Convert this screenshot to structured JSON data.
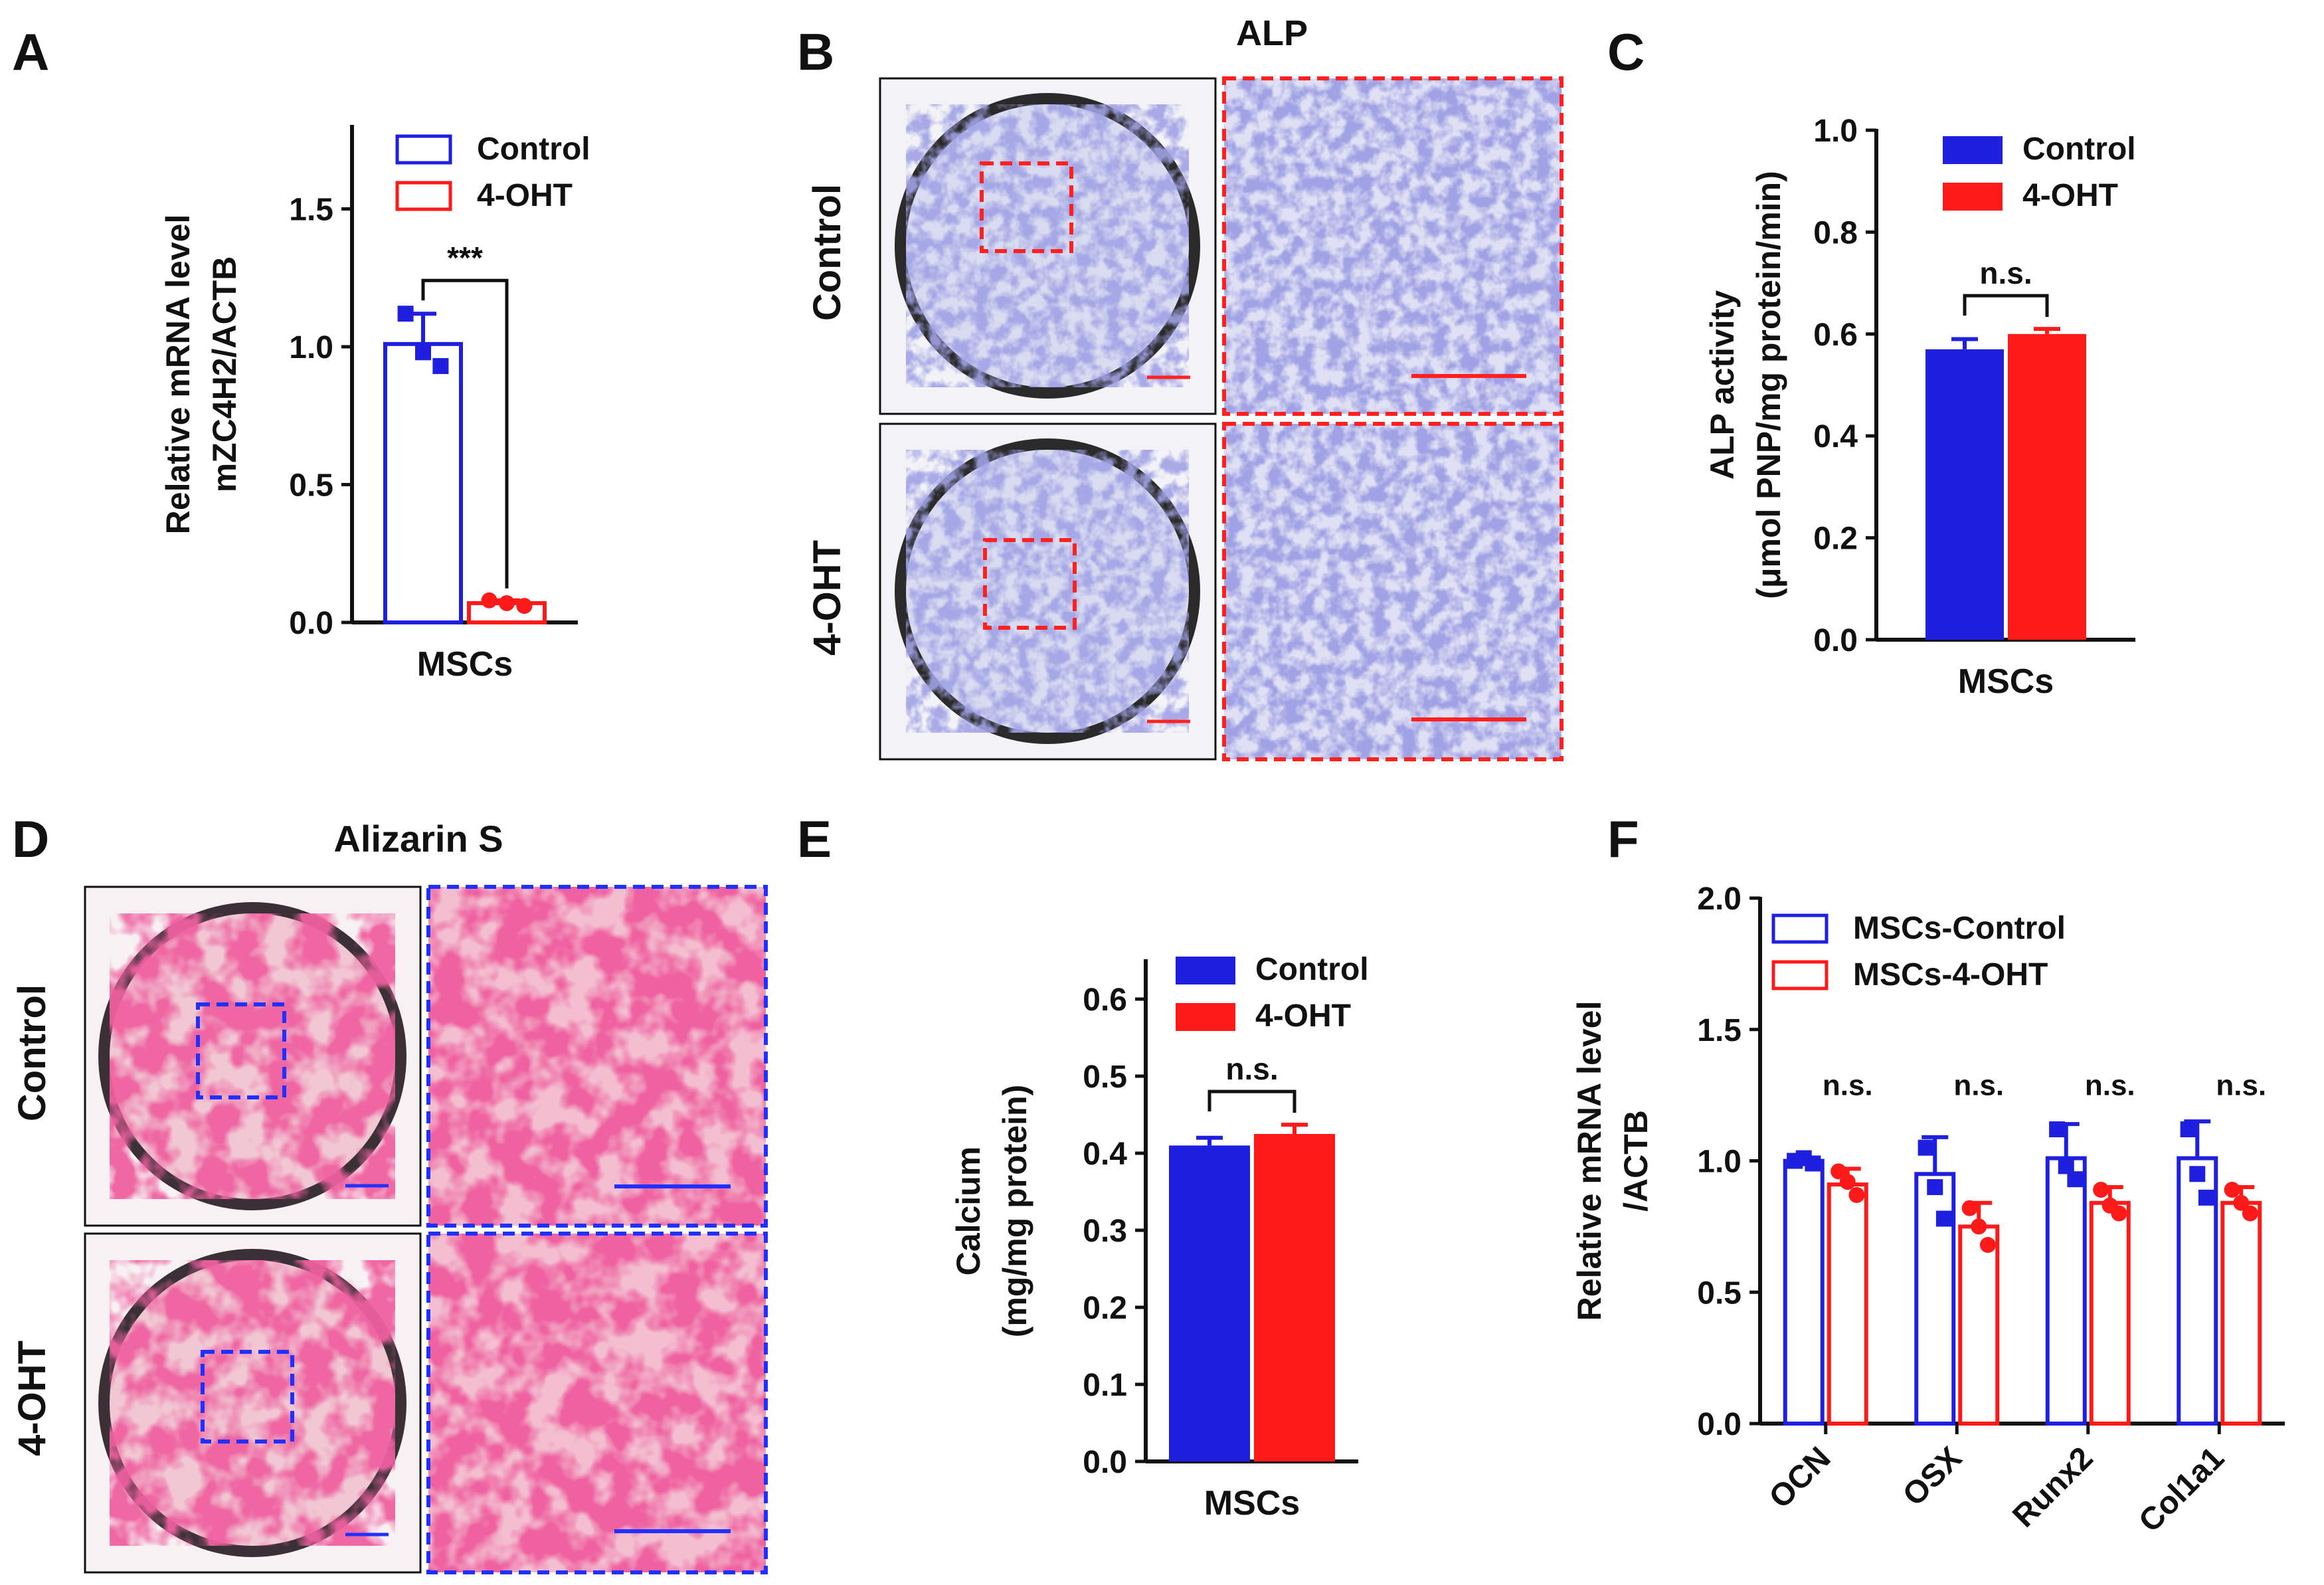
{
  "colors": {
    "control": "#1f1fe0",
    "treated": "#ff1a1a",
    "alp_stain": "#8a88cf",
    "alizarin_stain": "#e0295a",
    "axis": "#111111"
  },
  "panel_labels": [
    "A",
    "B",
    "C",
    "D",
    "E",
    "F"
  ],
  "micrographs": {
    "alp": {
      "title": "ALP",
      "rows": [
        "Control",
        "4-OHT"
      ],
      "box_color": "red"
    },
    "alizarin": {
      "title": "Alizarin S",
      "rows": [
        "Control",
        "4-OHT"
      ],
      "box_color": "blue"
    }
  },
  "chart_data": [
    {
      "panel": "A",
      "type": "bar",
      "style": "hollow",
      "categories": [
        "MSCs"
      ],
      "series": [
        {
          "name": "Control",
          "values": [
            1.01
          ],
          "errors": [
            0.11
          ],
          "points": [
            1.12,
            0.98,
            0.93
          ]
        },
        {
          "name": "4-OHT",
          "values": [
            0.07
          ],
          "errors": [
            0.01
          ],
          "points": [
            0.08,
            0.07,
            0.06
          ]
        }
      ],
      "ylabel_lines": [
        "Relative mRNA level",
        "mZC4H2/ACTB"
      ],
      "ylim": [
        0,
        1.8
      ],
      "yticks": [
        "0.0",
        "0.5",
        "1.0",
        "1.5"
      ],
      "significance": [
        "***"
      ],
      "legend_position": "top-right"
    },
    {
      "panel": "C",
      "type": "bar",
      "style": "filled",
      "categories": [
        "MSCs"
      ],
      "series": [
        {
          "name": "Control",
          "values": [
            0.57
          ],
          "errors": [
            0.02
          ]
        },
        {
          "name": "4-OHT",
          "values": [
            0.6
          ],
          "errors": [
            0.01
          ]
        }
      ],
      "ylabel_lines": [
        "ALP activity",
        "(μmol PNP/mg protein/min)"
      ],
      "ylim": [
        0,
        1.0
      ],
      "yticks": [
        "0.0",
        "0.2",
        "0.4",
        "0.6",
        "0.8",
        "1.0"
      ],
      "significance": [
        "n.s."
      ],
      "legend_position": "top-right"
    },
    {
      "panel": "E",
      "type": "bar",
      "style": "filled",
      "categories": [
        "MSCs"
      ],
      "series": [
        {
          "name": "Control",
          "values": [
            0.41
          ],
          "errors": [
            0.01
          ]
        },
        {
          "name": "4-OHT",
          "values": [
            0.425
          ],
          "errors": [
            0.012
          ]
        }
      ],
      "ylabel_lines": [
        "Calcium",
        "(mg/mg protein)"
      ],
      "ylim": [
        0,
        0.65
      ],
      "yticks": [
        "0.0",
        "0.1",
        "0.2",
        "0.3",
        "0.4",
        "0.5",
        "0.6"
      ],
      "significance": [
        "n.s."
      ],
      "legend_position": "top-right"
    },
    {
      "panel": "F",
      "type": "bar",
      "style": "hollow",
      "categories": [
        "OCN",
        "OSX",
        "Runx2",
        "Col1a1"
      ],
      "series": [
        {
          "name": "MSCs-Control",
          "values": [
            1.0,
            0.95,
            1.01,
            1.01
          ],
          "errors": [
            0.01,
            0.14,
            0.13,
            0.14
          ],
          "points": [
            [
              1.0,
              1.01,
              0.99
            ],
            [
              1.05,
              0.9,
              0.78
            ],
            [
              1.12,
              0.98,
              0.93
            ],
            [
              1.12,
              0.95,
              0.86
            ]
          ]
        },
        {
          "name": "MSCs-4-OHT",
          "values": [
            0.91,
            0.75,
            0.84,
            0.84
          ],
          "errors": [
            0.06,
            0.09,
            0.06,
            0.06
          ],
          "points": [
            [
              0.96,
              0.92,
              0.87
            ],
            [
              0.82,
              0.75,
              0.68
            ],
            [
              0.89,
              0.83,
              0.8
            ],
            [
              0.89,
              0.84,
              0.8
            ]
          ]
        }
      ],
      "ylabel_lines": [
        "Relative mRNA level",
        "/ACTB"
      ],
      "ylim": [
        0,
        2.0
      ],
      "yticks": [
        "0.0",
        "0.5",
        "1.0",
        "1.5",
        "2.0"
      ],
      "significance": [
        "n.s.",
        "n.s.",
        "n.s.",
        "n.s."
      ],
      "legend_position": "top-left"
    }
  ]
}
